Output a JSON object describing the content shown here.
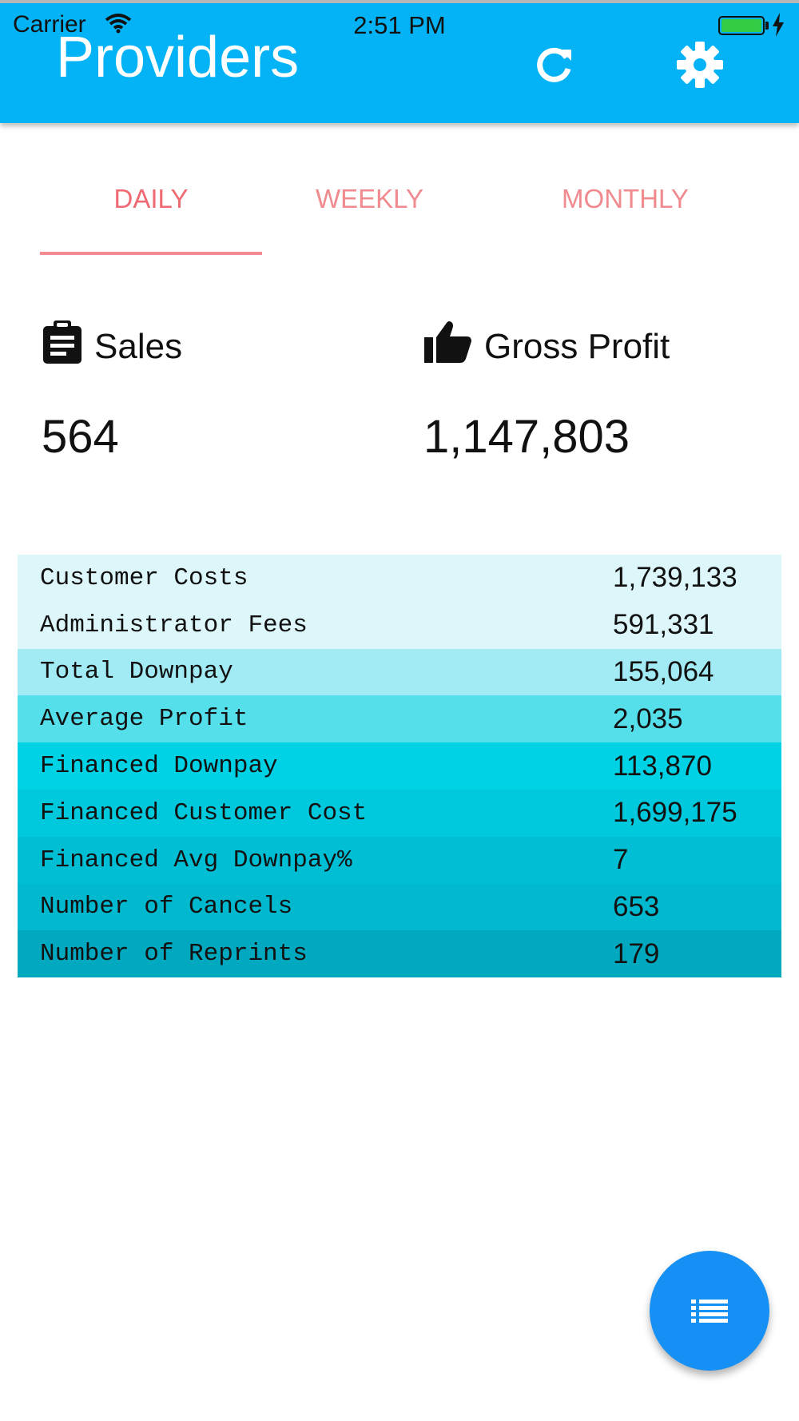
{
  "status_bar": {
    "carrier": "Carrier",
    "time": "2:51 PM"
  },
  "header": {
    "title": "Providers",
    "refresh_icon": "refresh-icon",
    "settings_icon": "gear-icon"
  },
  "tabs": [
    {
      "label": "DAILY",
      "active": true
    },
    {
      "label": "WEEKLY",
      "active": false
    },
    {
      "label": "MONTHLY",
      "active": false
    }
  ],
  "summary": {
    "sales": {
      "label": "Sales",
      "value": "564",
      "icon": "clipboard-icon"
    },
    "gross_profit": {
      "label": "Gross Profit",
      "value": "1,147,803",
      "icon": "thumbs-up-icon"
    }
  },
  "metrics": [
    {
      "label": "Customer Costs",
      "value": "1,739,133",
      "color": "#dcf6fa"
    },
    {
      "label": "Administrator Fees",
      "value": "591,331",
      "color": "#dcf6fa"
    },
    {
      "label": "Total Downpay",
      "value": "155,064",
      "color": "#a2ebf4"
    },
    {
      "label": "Average Profit",
      "value": "2,035",
      "color": "#55dfeb"
    },
    {
      "label": "Financed Downpay",
      "value": "113,870",
      "color": "#00d2e6"
    },
    {
      "label": "Financed Customer Cost",
      "value": "1,699,175",
      "color": "#00c9dd"
    },
    {
      "label": "Financed Avg Downpay%",
      "value": "7",
      "color": "#00bfd4"
    },
    {
      "label": "Number of Cancels",
      "value": "653",
      "color": "#00b9cf"
    },
    {
      "label": "Number of Reprints",
      "value": "179",
      "color": "#00a9bf"
    }
  ],
  "fab": {
    "icon": "list-icon"
  },
  "colors": {
    "header": "#03b3f5",
    "tab_text": "#ef6a72",
    "fab": "#1690f5"
  }
}
